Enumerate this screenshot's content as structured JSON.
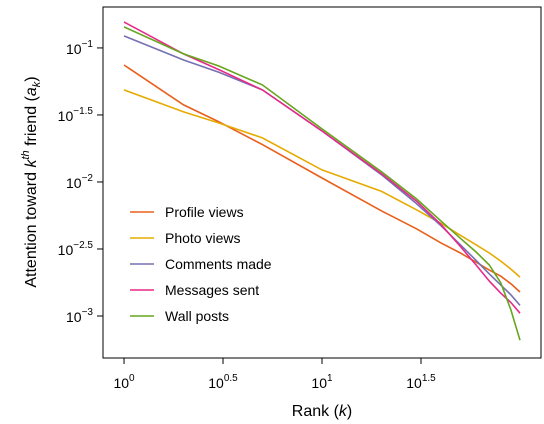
{
  "chart_data": {
    "type": "line",
    "x_label": {
      "before": "Rank (",
      "var": "k",
      "after": ")"
    },
    "y_label": {
      "before": "Attention toward ",
      "var": "k",
      "sup": "th",
      "middle": " friend (",
      "var2": "a",
      "sub": "k",
      "after": ")"
    },
    "x": [
      1,
      2,
      3,
      5,
      10,
      20,
      30,
      40,
      50,
      60,
      70,
      80,
      90,
      100
    ],
    "series": [
      {
        "name": "Profile views",
        "color": "#e8601c",
        "values": [
          0.0746,
          0.0376,
          0.0282,
          0.019,
          0.0107,
          0.00608,
          0.00447,
          0.0035,
          0.00295,
          0.00252,
          0.0022,
          0.00198,
          0.00174,
          0.00151
        ]
      },
      {
        "name": "Photo views",
        "color": "#e6ab02",
        "values": [
          0.0486,
          0.0333,
          0.0276,
          0.0213,
          0.0123,
          0.0085,
          0.0062,
          0.0049,
          0.004,
          0.0034,
          0.00295,
          0.00257,
          0.00224,
          0.00195
        ]
      },
      {
        "name": "Comments made",
        "color": "#7570b3",
        "values": [
          0.123,
          0.0813,
          0.066,
          0.0486,
          0.024,
          0.0113,
          0.0069,
          0.0047,
          0.0034,
          0.0026,
          0.00206,
          0.0017,
          0.00144,
          0.0012
        ]
      },
      {
        "name": "Messages sent",
        "color": "#e7298a",
        "values": [
          0.156,
          0.0902,
          0.069,
          0.0486,
          0.024,
          0.0115,
          0.0072,
          0.0048,
          0.0033,
          0.0024,
          0.00182,
          0.00148,
          0.00126,
          0.00105
        ]
      },
      {
        "name": "Wall posts",
        "color": "#66a61e",
        "values": [
          0.1435,
          0.0902,
          0.0734,
          0.053,
          0.0249,
          0.0119,
          0.00747,
          0.0051,
          0.0038,
          0.003,
          0.0024,
          0.00177,
          0.00111,
          0.00066
        ]
      }
    ],
    "xlim": [
      0.783,
      127.7
    ],
    "ylim": [
      0.000486,
      0.202
    ],
    "x_log": true,
    "y_log": true,
    "xticks": [
      {
        "value": 1,
        "label": "10",
        "exponent": "0"
      },
      {
        "value": 3.1623,
        "label": "10",
        "exponent": "0.5"
      },
      {
        "value": 10,
        "label": "10",
        "exponent": "1"
      },
      {
        "value": 31.623,
        "label": "10",
        "exponent": "1.5"
      }
    ],
    "yticks": [
      {
        "value": 0.1,
        "label": "10",
        "exponent": "−1"
      },
      {
        "value": 0.031623,
        "label": "10",
        "exponent": "−1.5"
      },
      {
        "value": 0.01,
        "label": "10",
        "exponent": "−2"
      },
      {
        "value": 0.0031623,
        "label": "10",
        "exponent": "−2.5"
      },
      {
        "value": 0.001,
        "label": "10",
        "exponent": "−3"
      }
    ],
    "grid": false,
    "legend": "lower left"
  }
}
